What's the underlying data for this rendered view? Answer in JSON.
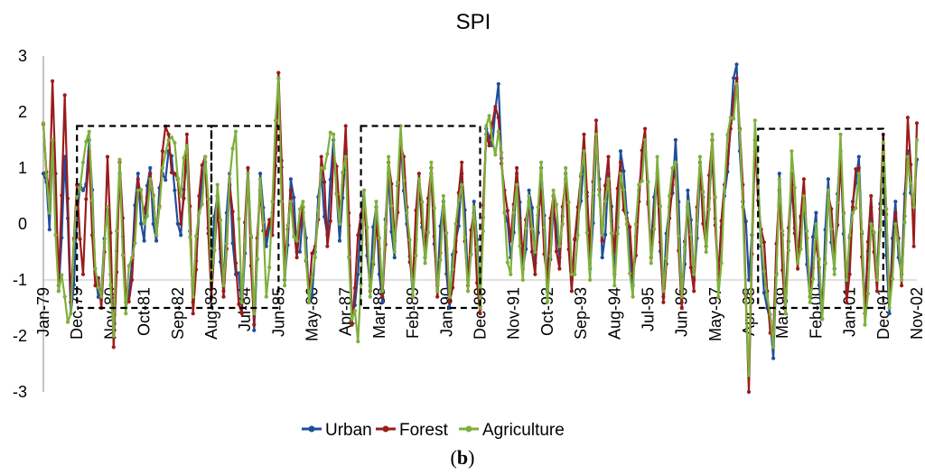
{
  "chart_data": {
    "type": "line",
    "title": "SPI",
    "caption": {
      "open": "(",
      "letter": "b",
      "close": ")"
    },
    "ylim": [
      -3,
      3
    ],
    "yticks": [
      -3,
      -2,
      -1,
      0,
      1,
      2,
      3
    ],
    "grid": false,
    "reference_line": -1,
    "legend_position": "bottom-center",
    "x_tick_labels": [
      "Jan-79",
      "Dec-79",
      "Nov-80",
      "Oct-81",
      "Sep-82",
      "Aug-83",
      "Jul-84",
      "Jun-85",
      "May-86",
      "Apr-87",
      "Mar-88",
      "Feb-89",
      "Jan-90",
      "Dec-90",
      "Nov-91",
      "Oct-92",
      "Sep-93",
      "Aug-94",
      "Jul-95",
      "Jun-96",
      "May-97",
      "Apr-98",
      "Mar-99",
      "Feb-00",
      "Jan-01",
      "Dec-01",
      "Nov-02"
    ],
    "x_tick_index": [
      0,
      11,
      22,
      33,
      44,
      55,
      66,
      77,
      88,
      99,
      110,
      121,
      132,
      143,
      154,
      165,
      176,
      187,
      198,
      209,
      220,
      231,
      242,
      253,
      264,
      275,
      286
    ],
    "n_months": 287,
    "drought_boxes": [
      {
        "start": 11,
        "end": 55,
        "top": 1.75,
        "bottom": -1.5
      },
      {
        "start": 55,
        "end": 77,
        "top": 1.75,
        "bottom": -1.5
      },
      {
        "start": 104,
        "end": 143,
        "top": 1.75,
        "bottom": -1.5
      },
      {
        "start": 234,
        "end": 275,
        "top": 1.7,
        "bottom": -1.5
      }
    ],
    "anchors": [
      [
        0,
        0.9,
        1.78,
        1.8
      ],
      [
        2,
        -0.1,
        0.5,
        0.2
      ],
      [
        3,
        1.4,
        2.55,
        1.5
      ],
      [
        5,
        -1.2,
        -1.1,
        -1.2
      ],
      [
        7,
        1.2,
        2.3,
        -1.3
      ],
      [
        9,
        -1.6,
        -1.4,
        -1.6
      ],
      [
        11,
        0.1,
        0.7,
        0.5
      ],
      [
        13,
        0.6,
        -0.9,
        1.1
      ],
      [
        15,
        1.5,
        1.3,
        1.65
      ],
      [
        17,
        -0.9,
        -1.1,
        -0.8
      ],
      [
        19,
        -1.2,
        -1.5,
        -1.3
      ],
      [
        21,
        0.3,
        1.2,
        0.3
      ],
      [
        23,
        -1.9,
        -2.2,
        -2.0
      ],
      [
        25,
        0.9,
        1.1,
        1.15
      ],
      [
        27,
        -1.5,
        -1.4,
        -1.6
      ],
      [
        29,
        -0.7,
        -1.0,
        -0.6
      ],
      [
        31,
        0.9,
        0.8,
        0.6
      ],
      [
        33,
        -0.3,
        0.2,
        0.0
      ],
      [
        35,
        1.0,
        0.9,
        0.8
      ],
      [
        37,
        -0.3,
        -0.2,
        -0.2
      ],
      [
        39,
        0.9,
        1.3,
        1.0
      ],
      [
        41,
        1.3,
        1.6,
        1.5
      ],
      [
        43,
        0.6,
        0.9,
        1.45
      ],
      [
        45,
        -0.2,
        0.0,
        0.5
      ],
      [
        47,
        1.2,
        1.6,
        1.4
      ],
      [
        49,
        -1.4,
        -1.6,
        -1.3
      ],
      [
        51,
        0.2,
        0.5,
        0.2
      ],
      [
        53,
        1.1,
        1.2,
        1.2
      ],
      [
        55,
        -0.8,
        -1.3,
        -1.0
      ],
      [
        57,
        0.5,
        0.3,
        0.7
      ],
      [
        59,
        -1.2,
        -1.3,
        -1.1
      ],
      [
        61,
        0.9,
        0.7,
        0.8
      ],
      [
        63,
        -0.9,
        -0.7,
        1.65
      ],
      [
        65,
        -1.5,
        -1.6,
        -1.4
      ],
      [
        67,
        1.0,
        1.0,
        0.9
      ],
      [
        69,
        -1.9,
        -1.8,
        -1.6
      ],
      [
        71,
        0.9,
        0.6,
        0.8
      ],
      [
        73,
        -0.4,
        -0.2,
        -1.3
      ],
      [
        75,
        0.2,
        -0.2,
        0.4
      ],
      [
        77,
        2.6,
        2.7,
        2.6
      ],
      [
        79,
        -1.0,
        -0.7,
        -1.1
      ],
      [
        81,
        0.8,
        0.6,
        0.4
      ],
      [
        83,
        -0.5,
        -0.6,
        -0.3
      ],
      [
        85,
        0.2,
        0.3,
        0.4
      ],
      [
        87,
        -1.4,
        -1.2,
        -1.4
      ],
      [
        89,
        -0.5,
        -0.4,
        -0.6
      ],
      [
        91,
        0.9,
        1.2,
        1.0
      ],
      [
        93,
        -0.2,
        -0.4,
        1.25
      ],
      [
        95,
        1.5,
        1.2,
        1.6
      ],
      [
        97,
        -0.3,
        0.2,
        0.0
      ],
      [
        99,
        1.3,
        1.75,
        1.2
      ],
      [
        101,
        -1.6,
        -1.8,
        -1.7
      ],
      [
        103,
        -0.9,
        -0.2,
        -2.1
      ],
      [
        105,
        0.6,
        0.4,
        0.6
      ],
      [
        107,
        -1.1,
        -1.2,
        -1.3
      ],
      [
        109,
        0.3,
        0.0,
        0.4
      ],
      [
        111,
        -1.4,
        -1.3,
        -1.2
      ],
      [
        113,
        0.9,
        1.1,
        1.2
      ],
      [
        115,
        -0.6,
        -0.3,
        -0.5
      ],
      [
        117,
        1.5,
        1.4,
        1.75
      ],
      [
        119,
        0.0,
        0.3,
        0.2
      ],
      [
        121,
        -1.3,
        -1.0,
        -1.3
      ],
      [
        123,
        0.7,
        0.9,
        0.8
      ],
      [
        125,
        -0.6,
        -0.4,
        -0.7
      ],
      [
        127,
        0.9,
        1.0,
        1.1
      ],
      [
        129,
        -1.1,
        -1.3,
        -1.2
      ],
      [
        131,
        0.4,
        0.3,
        0.5
      ],
      [
        133,
        -1.5,
        -1.4,
        -1.3
      ],
      [
        135,
        -0.3,
        -0.5,
        0.0
      ],
      [
        137,
        0.9,
        1.1,
        0.7
      ],
      [
        139,
        -1.0,
        -1.1,
        -1.2
      ],
      [
        141,
        0.4,
        0.2,
        0.3
      ],
      [
        143,
        -1.3,
        -1.6,
        -1.5
      ],
      [
        145,
        1.7,
        1.6,
        1.75
      ],
      [
        147,
        1.4,
        1.8,
        1.5
      ],
      [
        149,
        2.5,
        1.9,
        1.65
      ],
      [
        151,
        0.2,
        0.6,
        0.2
      ],
      [
        153,
        -0.6,
        -0.3,
        -0.9
      ],
      [
        155,
        0.9,
        1.0,
        0.7
      ],
      [
        157,
        -0.8,
        -0.6,
        -1.0
      ],
      [
        159,
        0.6,
        0.4,
        0.5
      ],
      [
        161,
        -0.7,
        -0.9,
        -0.5
      ],
      [
        163,
        1.0,
        0.6,
        1.1
      ],
      [
        165,
        -1.2,
        -1.0,
        -1.4
      ],
      [
        167,
        0.3,
        0.5,
        0.6
      ],
      [
        169,
        -0.6,
        -0.8,
        -0.4
      ],
      [
        171,
        0.9,
        0.8,
        1.0
      ],
      [
        173,
        -1.0,
        -1.2,
        -0.9
      ],
      [
        175,
        0.1,
        0.3,
        -0.2
      ],
      [
        177,
        1.2,
        1.6,
        1.3
      ],
      [
        179,
        -0.8,
        -0.5,
        -1.0
      ],
      [
        181,
        1.5,
        1.85,
        1.6
      ],
      [
        183,
        -0.6,
        -0.3,
        -0.2
      ],
      [
        185,
        0.9,
        1.2,
        0.8
      ],
      [
        187,
        -0.9,
        -0.5,
        -1.1
      ],
      [
        189,
        1.3,
        1.1,
        0.9
      ],
      [
        191,
        0.2,
        0.1,
        0.0
      ],
      [
        193,
        -1.1,
        -0.9,
        -1.3
      ],
      [
        195,
        0.6,
        0.4,
        0.7
      ],
      [
        197,
        1.5,
        1.7,
        1.5
      ],
      [
        199,
        -0.4,
        -0.6,
        -0.7
      ],
      [
        201,
        0.9,
        0.8,
        1.2
      ],
      [
        203,
        -1.3,
        -1.4,
        -1.2
      ],
      [
        205,
        0.3,
        0.1,
        0.5
      ],
      [
        207,
        1.5,
        1.0,
        1.1
      ],
      [
        209,
        -1.4,
        -1.5,
        -1.3
      ],
      [
        211,
        0.6,
        0.3,
        0.4
      ],
      [
        213,
        -1.0,
        -1.2,
        -0.9
      ],
      [
        215,
        0.9,
        1.1,
        1.2
      ],
      [
        217,
        -0.2,
        -0.4,
        -0.5
      ],
      [
        219,
        1.2,
        1.5,
        1.6
      ],
      [
        221,
        -0.9,
        -1.0,
        -1.3
      ],
      [
        223,
        0.5,
        0.7,
        0.6
      ],
      [
        225,
        1.8,
        1.7,
        1.9
      ],
      [
        227,
        2.85,
        2.6,
        2.5
      ],
      [
        229,
        0.4,
        0.7,
        0.3
      ],
      [
        231,
        -1.0,
        -3.0,
        -2.7
      ],
      [
        233,
        1.3,
        1.5,
        1.85
      ],
      [
        235,
        -0.4,
        -0.1,
        -0.3
      ],
      [
        237,
        -1.5,
        -1.2,
        -1.3
      ],
      [
        239,
        -2.4,
        -2.0,
        -2.2
      ],
      [
        241,
        0.9,
        0.6,
        0.8
      ],
      [
        243,
        -1.4,
        -1.6,
        -1.6
      ],
      [
        245,
        0.7,
        0.9,
        1.3
      ],
      [
        247,
        -0.6,
        -0.8,
        -0.7
      ],
      [
        249,
        0.4,
        0.8,
        0.5
      ],
      [
        251,
        -1.3,
        -1.2,
        -1.4
      ],
      [
        253,
        0.2,
        -0.3,
        0.0
      ],
      [
        255,
        -1.7,
        -1.5,
        -1.7
      ],
      [
        257,
        0.8,
        0.5,
        0.6
      ],
      [
        259,
        -0.8,
        -0.5,
        -0.9
      ],
      [
        261,
        1.3,
        1.1,
        1.6
      ],
      [
        263,
        -1.2,
        -1.4,
        -1.0
      ],
      [
        265,
        0.4,
        0.3,
        0.2
      ],
      [
        267,
        1.2,
        1.0,
        0.9
      ],
      [
        269,
        -1.5,
        -1.6,
        -1.8
      ],
      [
        271,
        0.3,
        0.5,
        0.0
      ],
      [
        273,
        -0.9,
        -1.2,
        -1.0
      ],
      [
        275,
        1.1,
        1.6,
        1.45
      ],
      [
        277,
        -1.6,
        -1.3,
        -1.5
      ],
      [
        279,
        0.4,
        0.2,
        0.0
      ],
      [
        281,
        -0.9,
        -1.1,
        -1.0
      ],
      [
        283,
        1.3,
        1.9,
        1.2
      ],
      [
        285,
        0.4,
        -0.4,
        0.3
      ],
      [
        286,
        1.15,
        1.8,
        1.5
      ]
    ],
    "series": [
      {
        "name": "Urban",
        "color": "#1f4e9b"
      },
      {
        "name": "Forest",
        "color": "#9b1b1b"
      },
      {
        "name": "Agriculture",
        "color": "#7fb03c"
      }
    ],
    "box_color": "#000000",
    "reference_line_color": "#c0c0c0"
  }
}
